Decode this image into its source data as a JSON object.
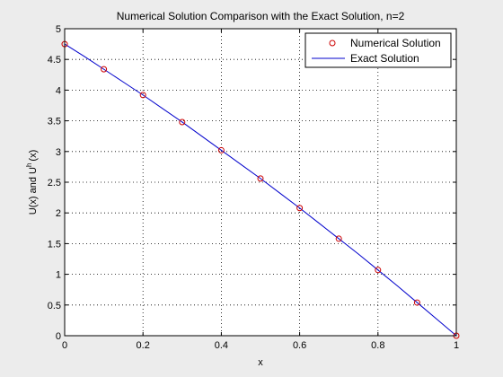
{
  "chart_data": {
    "type": "line",
    "title": "Numerical Solution Comparison with the Exact Solution, n=2",
    "xlabel": "x",
    "ylabel_main": "U(x) and U",
    "ylabel_sup": "h",
    "ylabel_tail": "(x)",
    "xlim": [
      0,
      1
    ],
    "ylim": [
      0,
      5
    ],
    "x_ticks": [
      "0",
      "0.2",
      "0.4",
      "0.6",
      "0.8",
      "1"
    ],
    "y_ticks": [
      "0",
      "0.5",
      "1",
      "1.5",
      "2",
      "2.5",
      "3",
      "3.5",
      "4",
      "4.5",
      "5"
    ],
    "grid": true,
    "legend_position": "top-right",
    "series": [
      {
        "name": "Numerical Solution",
        "style": "markers",
        "marker": "circle",
        "color": "#cc0000",
        "x": [
          0,
          0.1,
          0.2,
          0.3,
          0.4,
          0.5,
          0.6,
          0.7,
          0.8,
          0.9,
          1.0
        ],
        "y": [
          4.75,
          4.34,
          3.92,
          3.48,
          3.02,
          2.56,
          2.08,
          1.58,
          1.07,
          0.54,
          0
        ]
      },
      {
        "name": "Exact Solution",
        "style": "line",
        "color": "#0000cc",
        "x": [
          0,
          0.05,
          0.1,
          0.15,
          0.2,
          0.25,
          0.3,
          0.35,
          0.4,
          0.45,
          0.5,
          0.55,
          0.6,
          0.65,
          0.7,
          0.75,
          0.8,
          0.85,
          0.9,
          0.95,
          1.0
        ],
        "y": [
          4.75,
          4.55,
          4.34,
          4.13,
          3.92,
          3.7,
          3.48,
          3.25,
          3.02,
          2.79,
          2.56,
          2.32,
          2.08,
          1.83,
          1.58,
          1.33,
          1.07,
          0.81,
          0.54,
          0.27,
          0
        ]
      }
    ]
  }
}
